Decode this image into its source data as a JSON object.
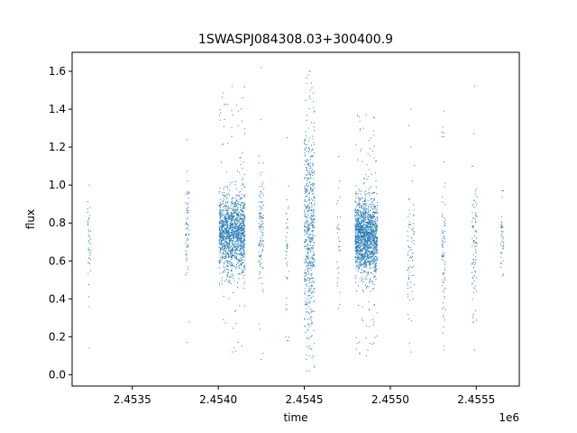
{
  "chart_data": {
    "type": "scatter",
    "title": "1SWASPJ084308.03+300400.9",
    "xlabel": "time",
    "ylabel": "flux",
    "x_offset_label": "1e6",
    "xlim": [
      2.45315,
      2.45575
    ],
    "ylim": [
      -0.06,
      1.7
    ],
    "x_ticks": [
      2.4535,
      2.454,
      2.4545,
      2.455,
      2.4555
    ],
    "x_tick_labels": [
      "2.4535",
      "2.4540",
      "2.4545",
      "2.4550",
      "2.4555"
    ],
    "y_ticks": [
      0.0,
      0.2,
      0.4,
      0.6,
      0.8,
      1.0,
      1.2,
      1.4,
      1.6
    ],
    "y_tick_labels": [
      "0.0",
      "0.2",
      "0.4",
      "0.6",
      "0.8",
      "1.0",
      "1.2",
      "1.4",
      "1.6"
    ],
    "grid": false,
    "marker_color": "#1f77b4",
    "clusters": [
      {
        "x": 2.45325,
        "width": 2e-05,
        "count": 40,
        "center": 0.7,
        "spread": 0.14,
        "min": 0.14,
        "max": 1.0
      },
      {
        "x": 2.45382,
        "width": 2e-05,
        "count": 60,
        "center": 0.78,
        "spread": 0.12,
        "min": 0.17,
        "max": 1.24
      },
      {
        "x": 2.45408,
        "width": 0.00015,
        "count": 1500,
        "center": 0.74,
        "spread": 0.1,
        "min": 0.12,
        "max": 1.52
      },
      {
        "x": 2.45425,
        "width": 3e-05,
        "count": 120,
        "center": 0.74,
        "spread": 0.15,
        "min": 0.08,
        "max": 1.62
      },
      {
        "x": 2.4544,
        "width": 2e-05,
        "count": 40,
        "center": 0.62,
        "spread": 0.2,
        "min": 0.18,
        "max": 1.25
      },
      {
        "x": 2.45453,
        "width": 6e-05,
        "count": 600,
        "center": 0.75,
        "spread": 0.28,
        "min": 0.02,
        "max": 1.6
      },
      {
        "x": 2.4547,
        "width": 2e-05,
        "count": 30,
        "center": 0.65,
        "spread": 0.2,
        "min": 0.35,
        "max": 1.15
      },
      {
        "x": 2.45486,
        "width": 0.00013,
        "count": 1600,
        "center": 0.72,
        "spread": 0.1,
        "min": 0.1,
        "max": 1.37
      },
      {
        "x": 2.45512,
        "width": 4e-05,
        "count": 80,
        "center": 0.65,
        "spread": 0.18,
        "min": 0.12,
        "max": 1.4
      },
      {
        "x": 2.45531,
        "width": 2e-05,
        "count": 80,
        "center": 0.65,
        "spread": 0.18,
        "min": 0.13,
        "max": 1.39
      },
      {
        "x": 2.45549,
        "width": 3e-05,
        "count": 90,
        "center": 0.65,
        "spread": 0.18,
        "min": 0.13,
        "max": 1.52
      },
      {
        "x": 2.45565,
        "width": 2e-05,
        "count": 40,
        "center": 0.72,
        "spread": 0.1,
        "min": 0.52,
        "max": 0.97
      }
    ]
  }
}
